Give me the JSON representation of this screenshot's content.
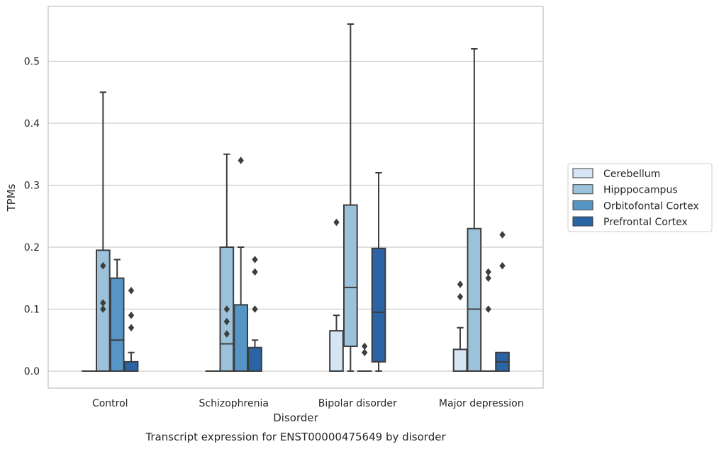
{
  "chart_data": {
    "type": "box",
    "title": "",
    "caption": "Transcript expression for ENST00000475649 by disorder",
    "xlabel": "Disorder",
    "ylabel": "TPMs",
    "ylim": [
      -0.028,
      0.59
    ],
    "yticks": [
      0.0,
      0.1,
      0.2,
      0.3,
      0.4,
      0.5
    ],
    "ytick_labels": [
      "0.0",
      "0.1",
      "0.2",
      "0.3",
      "0.4",
      "0.5"
    ],
    "grid": "horizontal",
    "legend_position": "right",
    "categories": [
      "Control",
      "Schizophrenia",
      "Bipolar disorder",
      "Major depression"
    ],
    "series": [
      {
        "name": "Cerebellum",
        "color": "#d6e5f3",
        "boxes": [
          {
            "whislo": 0,
            "q1": 0,
            "med": 0,
            "q3": 0,
            "whishi": 0,
            "fliers": []
          },
          {
            "whislo": 0,
            "q1": 0,
            "med": 0,
            "q3": 0,
            "whishi": 0,
            "fliers": []
          },
          {
            "whislo": 0,
            "q1": 0,
            "med": 0,
            "q3": 0.065,
            "whishi": 0.09,
            "fliers": [
              0.24
            ]
          },
          {
            "whislo": 0,
            "q1": 0,
            "med": 0,
            "q3": 0.035,
            "whishi": 0.07,
            "fliers": [
              0.12,
              0.14
            ]
          }
        ]
      },
      {
        "name": "Hipppocampus",
        "color": "#9cc2db",
        "boxes": [
          {
            "whislo": 0,
            "q1": 0,
            "med": 0,
            "q3": 0.195,
            "whishi": 0.45,
            "fliers": [
              0.1,
              0.11,
              0.17
            ]
          },
          {
            "whislo": 0,
            "q1": 0,
            "med": 0.044,
            "q3": 0.2,
            "whishi": 0.35,
            "fliers": [
              0.06,
              0.08,
              0.1
            ]
          },
          {
            "whislo": 0,
            "q1": 0.04,
            "med": 0.135,
            "q3": 0.268,
            "whishi": 0.56,
            "fliers": []
          },
          {
            "whislo": 0,
            "q1": 0,
            "med": 0.1,
            "q3": 0.23,
            "whishi": 0.52,
            "fliers": []
          }
        ]
      },
      {
        "name": "Orbitofontal Cortex",
        "color": "#5696c6",
        "boxes": [
          {
            "whislo": 0,
            "q1": 0,
            "med": 0.05,
            "q3": 0.15,
            "whishi": 0.18,
            "fliers": []
          },
          {
            "whislo": 0,
            "q1": 0,
            "med": 0,
            "q3": 0.107,
            "whishi": 0.2,
            "fliers": [
              0.34
            ]
          },
          {
            "whislo": 0,
            "q1": 0,
            "med": 0,
            "q3": 0,
            "whishi": 0,
            "fliers": [
              0.03,
              0.04
            ]
          },
          {
            "whislo": 0,
            "q1": 0,
            "med": 0,
            "q3": 0,
            "whishi": 0,
            "fliers": [
              0.1,
              0.15,
              0.16
            ]
          }
        ]
      },
      {
        "name": "Prefrontal Cortex",
        "color": "#2a64a5",
        "boxes": [
          {
            "whislo": 0,
            "q1": 0,
            "med": 0,
            "q3": 0.015,
            "whishi": 0.03,
            "fliers": [
              0.07,
              0.09,
              0.13
            ]
          },
          {
            "whislo": 0,
            "q1": 0,
            "med": 0,
            "q3": 0.038,
            "whishi": 0.05,
            "fliers": [
              0.1,
              0.16,
              0.18
            ]
          },
          {
            "whislo": 0,
            "q1": 0.015,
            "med": 0.095,
            "q3": 0.198,
            "whishi": 0.32,
            "fliers": []
          },
          {
            "whislo": 0,
            "q1": 0,
            "med": 0.015,
            "q3": 0.03,
            "whishi": 0.03,
            "fliers": [
              0.17,
              0.22
            ]
          }
        ]
      }
    ]
  }
}
